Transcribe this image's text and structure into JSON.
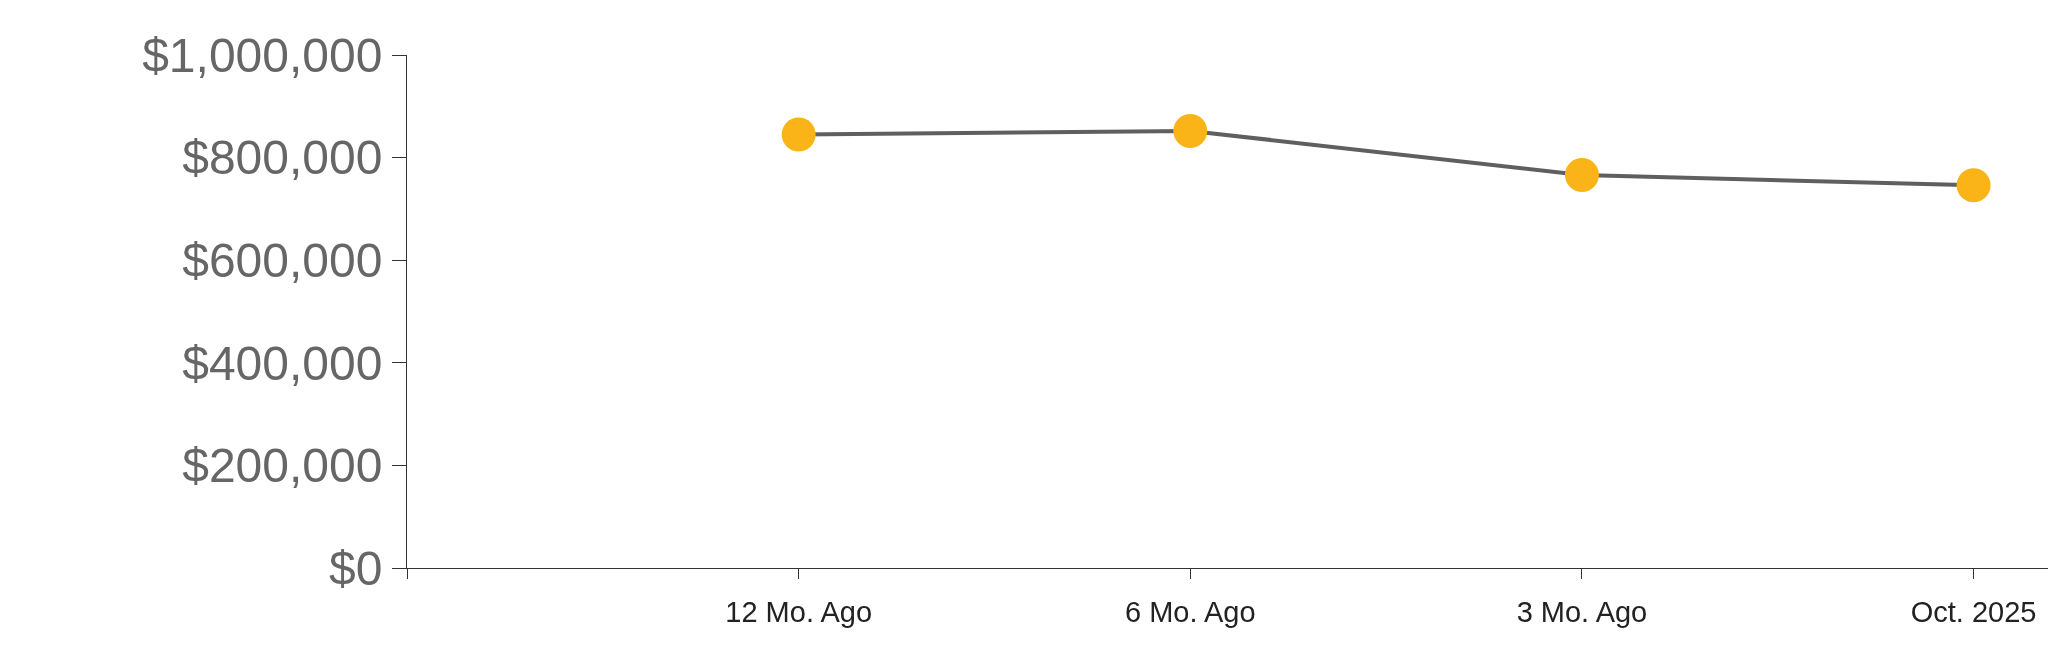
{
  "chart_data": {
    "type": "line",
    "categories": [
      null,
      "12 Mo. Ago",
      "6 Mo. Ago",
      "3 Mo. Ago",
      "Oct. 2025"
    ],
    "series": [
      {
        "color": "#5f5f5f",
        "colors": [
          null,
          "#fbb417",
          "#fbb417",
          "#fbb417",
          "#fbb417"
        ],
        "values": [
          null,
          845000,
          852000,
          766000,
          746000
        ]
      }
    ],
    "marker": "circle",
    "line_style": "solid",
    "grid": false,
    "ylim": [
      0,
      1000000
    ],
    "yticks": [
      {
        "value": 0,
        "label": "$0"
      },
      {
        "value": 200000,
        "label": "$200,000"
      },
      {
        "value": 400000,
        "label": "$400,000"
      },
      {
        "value": 600000,
        "label": "$600,000"
      },
      {
        "value": 800000,
        "label": "$800,000"
      },
      {
        "value": 1000000,
        "label": "$1,000,000"
      }
    ]
  }
}
